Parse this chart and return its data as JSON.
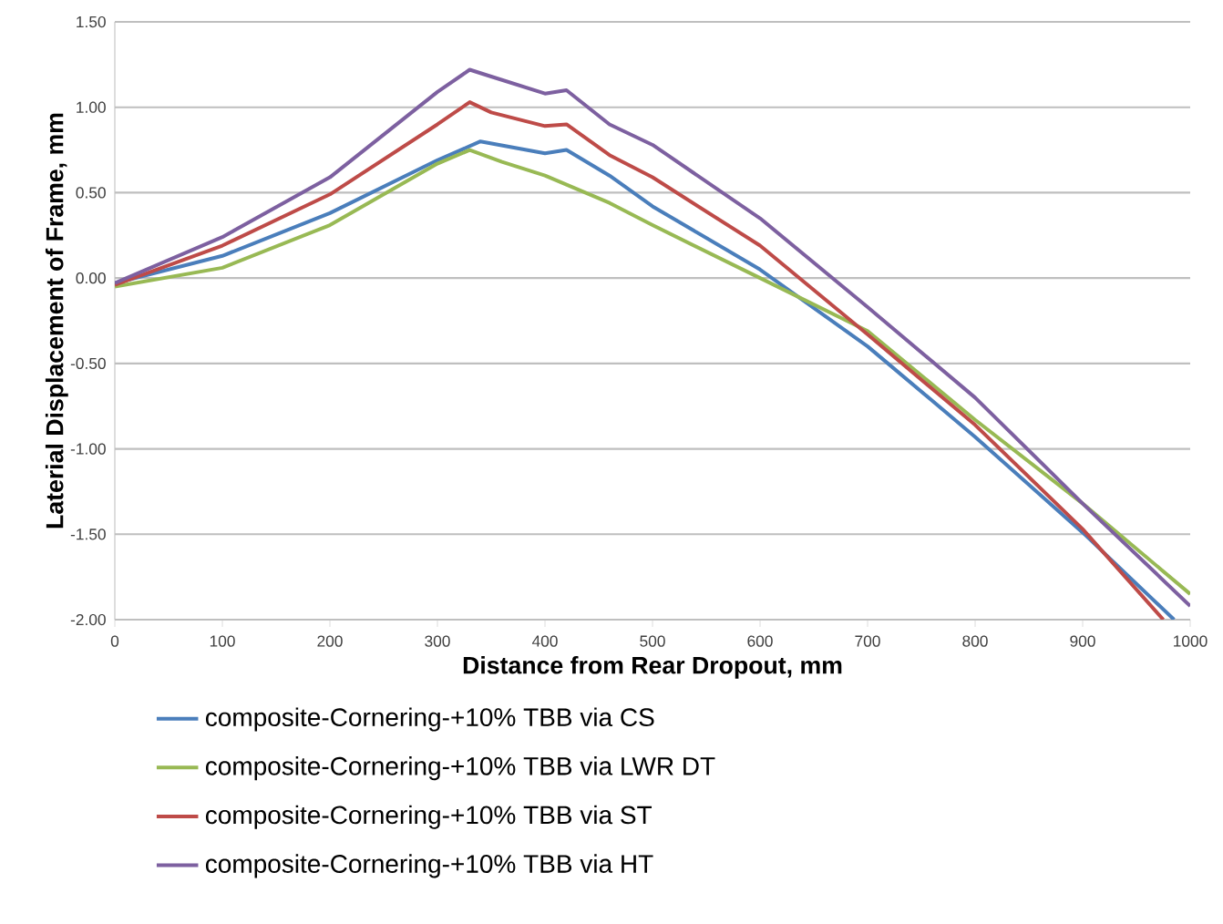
{
  "chart_data": {
    "type": "line",
    "xlabel": "Distance from Rear Dropout, mm",
    "ylabel": "Laterial Displacement of Frame, mm",
    "xlim": [
      0,
      1000
    ],
    "xticks": [
      0,
      100,
      200,
      300,
      400,
      500,
      600,
      700,
      800,
      900,
      1000
    ],
    "ylim": [
      -2.0,
      1.5
    ],
    "yticks": [
      {
        "value": 1.5,
        "label": "1.50"
      },
      {
        "value": 1.0,
        "label": "1.00"
      },
      {
        "value": 0.5,
        "label": "0.50"
      },
      {
        "value": 0,
        "label": "0.00"
      },
      {
        "value": -0.5,
        "label": "-0.50"
      },
      {
        "value": -1.0,
        "label": "-1.00"
      },
      {
        "value": -1.5,
        "label": "-1.50"
      },
      {
        "value": -2.0,
        "label": "-2.00"
      }
    ],
    "grid": "y",
    "legend": "bottom",
    "marker": "none",
    "line_style": "solid",
    "series": [
      {
        "name": "composite-Cornering-+10% TBB via CS",
        "color": "#4a7ebb",
        "x": [
          0,
          100,
          200,
          300,
          340,
          400,
          420,
          460,
          500,
          600,
          700,
          800,
          900,
          985
        ],
        "values": [
          -0.03,
          0.13,
          0.38,
          0.69,
          0.8,
          0.73,
          0.75,
          0.6,
          0.42,
          0.05,
          -0.4,
          -0.93,
          -1.49,
          -2.0
        ]
      },
      {
        "name": "composite-Cornering-+10% TBB via LWR DT",
        "color": "#98b954",
        "x": [
          0,
          100,
          200,
          300,
          330,
          360,
          400,
          460,
          500,
          600,
          700,
          800,
          900,
          1000
        ],
        "values": [
          -0.05,
          0.06,
          0.31,
          0.67,
          0.75,
          0.68,
          0.6,
          0.44,
          0.31,
          0.0,
          -0.31,
          -0.83,
          -1.32,
          -1.85
        ]
      },
      {
        "name": "composite-Cornering-+10% TBB via ST",
        "color": "#be4b48",
        "x": [
          0,
          100,
          200,
          300,
          330,
          350,
          400,
          420,
          460,
          500,
          600,
          700,
          800,
          900,
          975
        ],
        "values": [
          -0.04,
          0.19,
          0.49,
          0.9,
          1.03,
          0.97,
          0.89,
          0.9,
          0.72,
          0.59,
          0.19,
          -0.33,
          -0.86,
          -1.47,
          -2.0
        ]
      },
      {
        "name": "composite-Cornering-+10% TBB via HT",
        "color": "#7d60a0",
        "x": [
          0,
          100,
          200,
          300,
          330,
          350,
          400,
          420,
          460,
          500,
          600,
          700,
          800,
          900,
          1000
        ],
        "values": [
          -0.03,
          0.24,
          0.59,
          1.09,
          1.22,
          1.18,
          1.08,
          1.1,
          0.9,
          0.78,
          0.35,
          -0.17,
          -0.7,
          -1.32,
          -1.92
        ]
      }
    ]
  }
}
